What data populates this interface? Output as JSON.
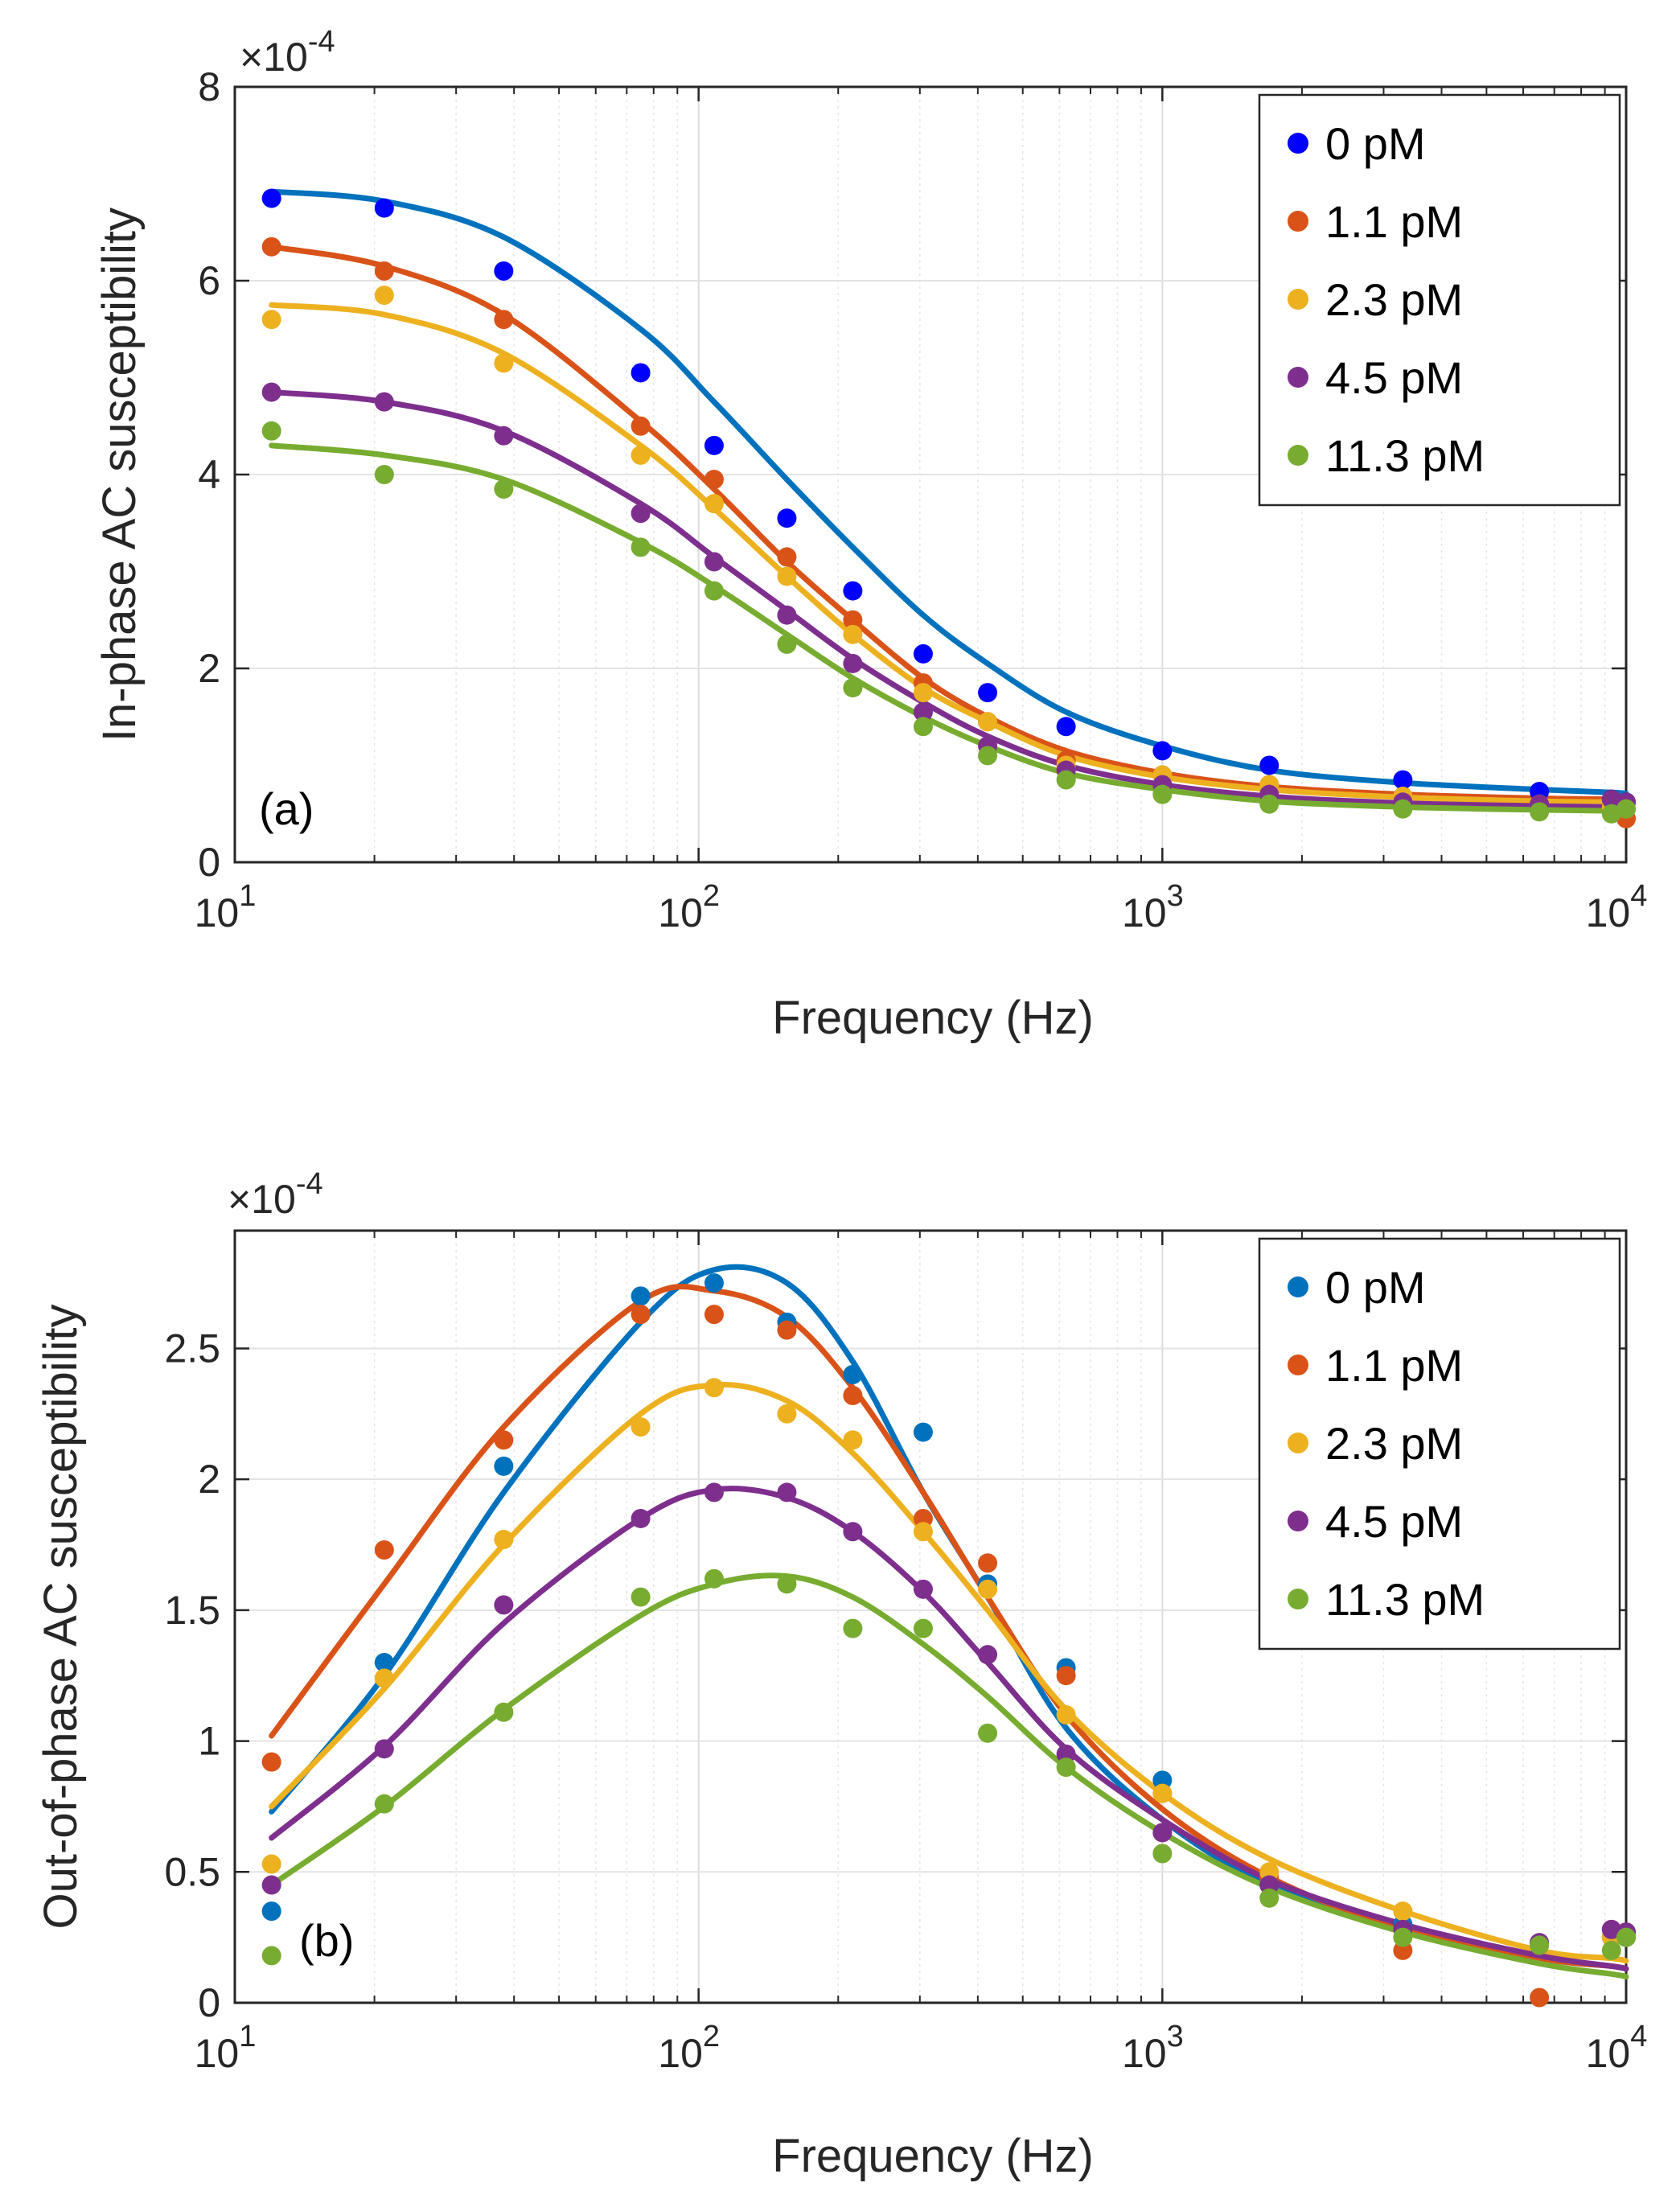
{
  "chart_data": [
    {
      "type": "scatter",
      "panel_label": "(a)",
      "xlabel": "Frequency (Hz)",
      "ylabel": "In-phase AC susceptibility",
      "x_scale": "log",
      "xlim": [
        10,
        10000
      ],
      "ylim": [
        0,
        8
      ],
      "y_multiplier": "-4",
      "y_multiplier_prefix": "×10",
      "x_ticks": [
        {
          "base": "10",
          "exp": "1"
        },
        {
          "base": "10",
          "exp": "2"
        },
        {
          "base": "10",
          "exp": "3"
        },
        {
          "base": "10",
          "exp": "4"
        }
      ],
      "y_ticks": [
        "0",
        "2",
        "4",
        "6",
        "8"
      ],
      "grid": true,
      "legend_position": "top-right",
      "x": [
        12,
        21,
        38,
        75,
        108,
        155,
        215,
        305,
        420,
        620,
        1000,
        1700,
        3300,
        6500,
        9300,
        10000
      ],
      "series": [
        {
          "name": "0 pM",
          "color": "#0000ff",
          "line_color": "#0072bd",
          "values": [
            6.85,
            6.75,
            6.1,
            5.05,
            4.3,
            3.55,
            2.8,
            2.15,
            1.75,
            1.4,
            1.15,
            1.0,
            0.85,
            0.73,
            0.65,
            0.62
          ],
          "fit": [
            6.92,
            6.82,
            6.45,
            5.5,
            4.75,
            3.95,
            3.25,
            2.55,
            2.05,
            1.55,
            1.2,
            0.95,
            0.82,
            0.75,
            0.72,
            0.71
          ]
        },
        {
          "name": "1.1 pM",
          "color": "#d95319",
          "line_color": "#d95319",
          "values": [
            6.35,
            6.1,
            5.6,
            4.5,
            3.95,
            3.15,
            2.5,
            1.85,
            1.45,
            1.05,
            0.9,
            0.8,
            0.68,
            0.6,
            0.55,
            0.45
          ],
          "fit": [
            6.35,
            6.15,
            5.65,
            4.55,
            3.85,
            3.1,
            2.5,
            1.9,
            1.5,
            1.15,
            0.92,
            0.78,
            0.7,
            0.66,
            0.65,
            0.65
          ]
        },
        {
          "name": "2.3 pM",
          "color": "#edb120",
          "line_color": "#edb120",
          "values": [
            5.6,
            5.85,
            5.15,
            4.2,
            3.7,
            2.95,
            2.35,
            1.75,
            1.45,
            1.0,
            0.9,
            0.8,
            0.68,
            0.6,
            0.57,
            0.55
          ],
          "fit": [
            5.75,
            5.65,
            5.25,
            4.3,
            3.65,
            2.95,
            2.35,
            1.8,
            1.45,
            1.1,
            0.88,
            0.75,
            0.67,
            0.63,
            0.62,
            0.62
          ]
        },
        {
          "name": "4.5 pM",
          "color": "#7e2f8e",
          "line_color": "#7e2f8e",
          "values": [
            4.85,
            4.75,
            4.4,
            3.6,
            3.1,
            2.55,
            2.05,
            1.55,
            1.2,
            0.95,
            0.8,
            0.7,
            0.62,
            0.6,
            0.65,
            0.62
          ],
          "fit": [
            4.85,
            4.75,
            4.45,
            3.7,
            3.15,
            2.6,
            2.1,
            1.65,
            1.3,
            1.0,
            0.8,
            0.68,
            0.61,
            0.58,
            0.57,
            0.57
          ]
        },
        {
          "name": "11.3 pM",
          "color": "#77ac30",
          "line_color": "#77ac30",
          "values": [
            4.45,
            4.0,
            3.85,
            3.25,
            2.8,
            2.25,
            1.8,
            1.4,
            1.1,
            0.85,
            0.7,
            0.6,
            0.55,
            0.52,
            0.5,
            0.55
          ],
          "fit": [
            4.3,
            4.2,
            3.95,
            3.3,
            2.85,
            2.35,
            1.9,
            1.5,
            1.2,
            0.92,
            0.75,
            0.63,
            0.57,
            0.54,
            0.53,
            0.53
          ]
        }
      ]
    },
    {
      "type": "scatter",
      "panel_label": "(b)",
      "xlabel": "Frequency (Hz)",
      "ylabel": "Out-of-phase AC susceptibility",
      "x_scale": "log",
      "xlim": [
        10,
        10000
      ],
      "ylim": [
        0,
        2.95
      ],
      "y_multiplier": "-4",
      "y_multiplier_prefix": "×10",
      "x_ticks": [
        {
          "base": "10",
          "exp": "1"
        },
        {
          "base": "10",
          "exp": "2"
        },
        {
          "base": "10",
          "exp": "3"
        },
        {
          "base": "10",
          "exp": "4"
        }
      ],
      "y_ticks": [
        "0",
        "0.5",
        "1",
        "1.5",
        "2",
        "2.5"
      ],
      "grid": true,
      "legend_position": "top-right",
      "x": [
        12,
        21,
        38,
        75,
        108,
        155,
        215,
        305,
        420,
        620,
        1000,
        1700,
        3300,
        6500,
        9300,
        10000
      ],
      "series": [
        {
          "name": "0 pM",
          "color": "#0072bd",
          "line_color": "#0072bd",
          "values": [
            0.35,
            1.3,
            2.05,
            2.7,
            2.75,
            2.6,
            2.4,
            2.18,
            1.6,
            1.28,
            0.85,
            0.45,
            0.3,
            0.22,
            0.25,
            0.25
          ],
          "fit": [
            0.73,
            1.25,
            1.95,
            2.6,
            2.8,
            2.75,
            2.45,
            1.95,
            1.55,
            1.05,
            0.7,
            0.45,
            0.28,
            0.17,
            0.14,
            0.13
          ]
        },
        {
          "name": "1.1 pM",
          "color": "#d95319",
          "line_color": "#d95319",
          "values": [
            0.92,
            1.73,
            2.15,
            2.63,
            2.63,
            2.57,
            2.32,
            1.85,
            1.68,
            1.25,
            0.8,
            0.48,
            0.2,
            0.02,
            0.28,
            0.27
          ],
          "fit": [
            1.02,
            1.6,
            2.2,
            2.68,
            2.72,
            2.62,
            2.35,
            1.95,
            1.55,
            1.1,
            0.74,
            0.48,
            0.28,
            0.17,
            0.14,
            0.13
          ]
        },
        {
          "name": "2.3 pM",
          "color": "#edb120",
          "line_color": "#edb120",
          "values": [
            0.53,
            1.24,
            1.77,
            2.2,
            2.35,
            2.25,
            2.15,
            1.8,
            1.58,
            1.1,
            0.8,
            0.5,
            0.35,
            0.22,
            0.25,
            0.25
          ],
          "fit": [
            0.75,
            1.2,
            1.75,
            2.25,
            2.36,
            2.3,
            2.1,
            1.8,
            1.5,
            1.12,
            0.8,
            0.55,
            0.35,
            0.2,
            0.17,
            0.16
          ]
        },
        {
          "name": "4.5 pM",
          "color": "#7e2f8e",
          "line_color": "#7e2f8e",
          "values": [
            0.45,
            0.97,
            1.52,
            1.85,
            1.95,
            1.95,
            1.8,
            1.58,
            1.33,
            0.95,
            0.65,
            0.45,
            0.28,
            0.23,
            0.28,
            0.27
          ],
          "fit": [
            0.63,
            0.98,
            1.45,
            1.85,
            1.96,
            1.93,
            1.8,
            1.57,
            1.3,
            0.97,
            0.7,
            0.47,
            0.3,
            0.18,
            0.14,
            0.13
          ]
        },
        {
          "name": "11.3 pM",
          "color": "#77ac30",
          "line_color": "#77ac30",
          "values": [
            0.18,
            0.76,
            1.11,
            1.55,
            1.62,
            1.6,
            1.43,
            1.43,
            1.03,
            0.9,
            0.57,
            0.4,
            0.25,
            0.22,
            0.2,
            0.25
          ],
          "fit": [
            0.45,
            0.75,
            1.12,
            1.48,
            1.6,
            1.63,
            1.55,
            1.37,
            1.17,
            0.9,
            0.65,
            0.44,
            0.27,
            0.15,
            0.11,
            0.1
          ]
        }
      ]
    }
  ]
}
